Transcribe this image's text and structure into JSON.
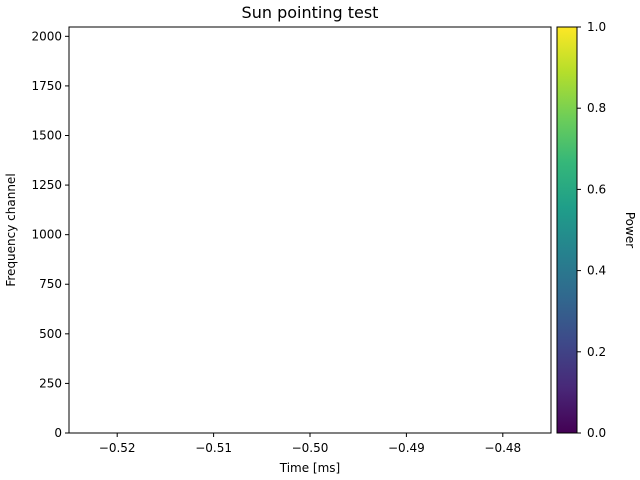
{
  "chart_data": {
    "type": "heatmap",
    "title": "Sun pointing test",
    "xlabel": "Time [ms]",
    "ylabel": "Frequency channel",
    "xlim": [
      -0.525,
      -0.475
    ],
    "ylim": [
      0,
      2047
    ],
    "xticks": [
      -0.52,
      -0.51,
      -0.5,
      -0.49,
      -0.48
    ],
    "xtick_labels": [
      "−0.52",
      "−0.51",
      "−0.50",
      "−0.49",
      "−0.48"
    ],
    "yticks": [
      0,
      250,
      500,
      750,
      1000,
      1250,
      1500,
      1750,
      2000
    ],
    "ytick_labels": [
      "0",
      "250",
      "500",
      "750",
      "1000",
      "1250",
      "1500",
      "1750",
      "2000"
    ],
    "values": [],
    "grid": false,
    "colorbar": {
      "label": "Power",
      "colormap": "viridis",
      "range": [
        0.0,
        1.0
      ],
      "ticks": [
        0.0,
        0.2,
        0.4,
        0.6,
        0.8,
        1.0
      ],
      "tick_labels": [
        "0.0",
        "0.2",
        "0.4",
        "0.6",
        "0.8",
        "1.0"
      ],
      "colors": [
        "#440154",
        "#482878",
        "#3e4989",
        "#31688e",
        "#26828e",
        "#1f9e89",
        "#35b779",
        "#6ece58",
        "#b5de2b",
        "#fde725"
      ]
    }
  }
}
